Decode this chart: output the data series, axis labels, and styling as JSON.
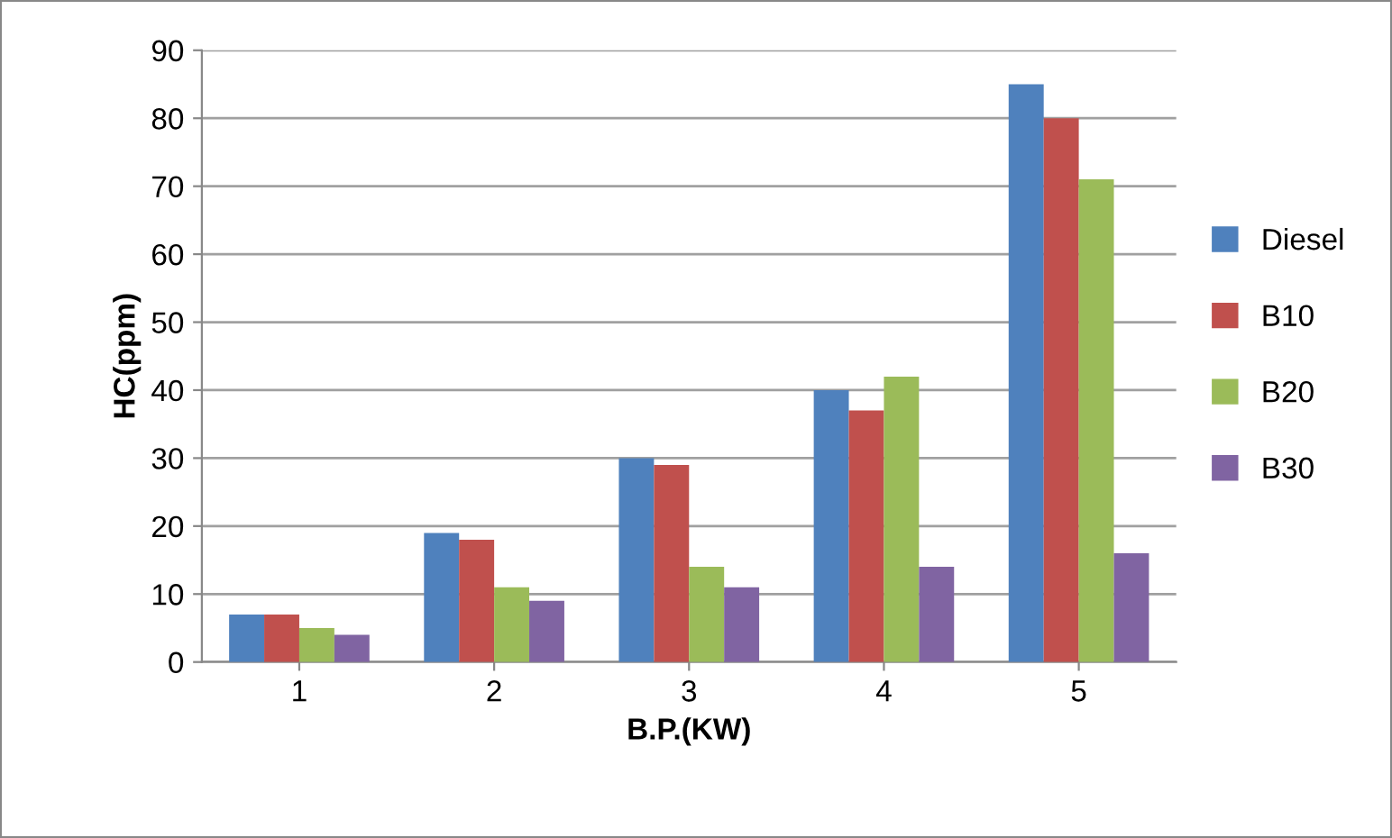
{
  "chart_data": {
    "type": "bar",
    "xlabel": "B.P.(KW)",
    "ylabel": "HC(ppm)",
    "categories": [
      "1",
      "2",
      "3",
      "4",
      "5"
    ],
    "series": [
      {
        "name": "Diesel",
        "color": "#4f81bd",
        "values": [
          7,
          19,
          30,
          40,
          85
        ]
      },
      {
        "name": "B10",
        "color": "#c0504d",
        "values": [
          7,
          18,
          29,
          37,
          80
        ]
      },
      {
        "name": "B20",
        "color": "#9bbb59",
        "values": [
          5,
          11,
          14,
          42,
          71
        ]
      },
      {
        "name": "B30",
        "color": "#8064a2",
        "values": [
          4,
          9,
          11,
          14,
          16
        ]
      }
    ],
    "ylim": [
      0,
      90
    ],
    "yticks": [
      0,
      10,
      20,
      30,
      40,
      50,
      60,
      70,
      80,
      90
    ],
    "grid": "y",
    "legend": "right"
  }
}
